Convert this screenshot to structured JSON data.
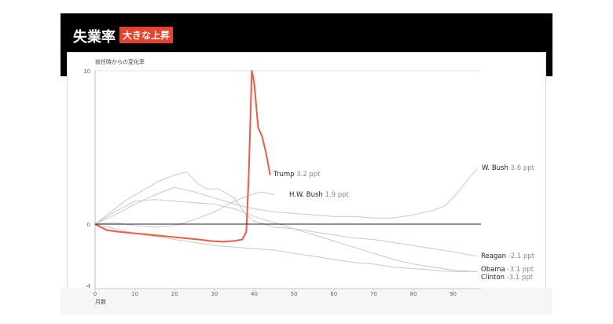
{
  "header": {
    "title": "失業率",
    "badge": "大きな上昇"
  },
  "chart_data": {
    "type": "line",
    "ylabel": "就任時からの変化率",
    "xlabel": "月数",
    "xlim": [
      0,
      97
    ],
    "ylim": [
      -4,
      10
    ],
    "y_ticks": [
      "10",
      "0",
      "-4"
    ],
    "x_ticks": [
      "0",
      "10",
      "20",
      "30",
      "40",
      "50",
      "60",
      "70",
      "80",
      "90"
    ],
    "series": [
      {
        "name": "Trump",
        "value_label": "3.2 ppt",
        "color": "#f15a40",
        "points": [
          [
            0,
            0
          ],
          [
            3,
            -0.4
          ],
          [
            6,
            -0.5
          ],
          [
            10,
            -0.6
          ],
          [
            14,
            -0.7
          ],
          [
            18,
            -0.8
          ],
          [
            22,
            -0.9
          ],
          [
            26,
            -1.0
          ],
          [
            29,
            -1.1
          ],
          [
            32,
            -1.15
          ],
          [
            35,
            -1.1
          ],
          [
            37,
            -1.0
          ],
          [
            38,
            -0.5
          ],
          [
            38.6,
            3.0
          ],
          [
            39,
            6.5
          ],
          [
            39.4,
            10.0
          ],
          [
            40,
            9.2
          ],
          [
            41,
            6.3
          ],
          [
            42,
            5.7
          ],
          [
            43,
            4.6
          ],
          [
            44,
            3.2
          ]
        ]
      },
      {
        "name": "W. Bush",
        "value_label": "3.6 ppt",
        "color": "#c9c9c9",
        "points": [
          [
            0,
            0
          ],
          [
            5,
            0.6
          ],
          [
            10,
            1.3
          ],
          [
            15,
            1.9
          ],
          [
            20,
            2.4
          ],
          [
            25,
            2.1
          ],
          [
            30,
            1.7
          ],
          [
            35,
            1.3
          ],
          [
            40,
            1.0
          ],
          [
            45,
            0.8
          ],
          [
            50,
            0.7
          ],
          [
            55,
            0.6
          ],
          [
            60,
            0.5
          ],
          [
            65,
            0.5
          ],
          [
            70,
            0.4
          ],
          [
            75,
            0.4
          ],
          [
            80,
            0.6
          ],
          [
            85,
            0.9
          ],
          [
            88,
            1.2
          ],
          [
            91,
            2.0
          ],
          [
            94,
            3.0
          ],
          [
            96,
            3.6
          ]
        ]
      },
      {
        "name": "H.W. Bush",
        "value_label": "1.9 ppt",
        "color": "#c9c9c9",
        "points": [
          [
            0,
            0
          ],
          [
            5,
            0.1
          ],
          [
            10,
            -0.1
          ],
          [
            15,
            -0.2
          ],
          [
            20,
            -0.1
          ],
          [
            25,
            0.3
          ],
          [
            30,
            0.8
          ],
          [
            35,
            1.5
          ],
          [
            40,
            2.0
          ],
          [
            42,
            2.1
          ],
          [
            45,
            1.9
          ]
        ]
      },
      {
        "name": "Reagan",
        "value_label": "-2.1 ppt",
        "color": "#c9c9c9",
        "points": [
          [
            0,
            0
          ],
          [
            4,
            0.8
          ],
          [
            8,
            1.6
          ],
          [
            12,
            2.2
          ],
          [
            16,
            2.8
          ],
          [
            20,
            3.2
          ],
          [
            23,
            3.4
          ],
          [
            26,
            2.6
          ],
          [
            28,
            2.3
          ],
          [
            31,
            2.3
          ],
          [
            35,
            1.7
          ],
          [
            38,
            0.6
          ],
          [
            40,
            0.2
          ],
          [
            45,
            -0.2
          ],
          [
            50,
            -0.3
          ],
          [
            55,
            -0.5
          ],
          [
            60,
            -0.7
          ],
          [
            65,
            -0.9
          ],
          [
            70,
            -1.0
          ],
          [
            75,
            -1.2
          ],
          [
            80,
            -1.4
          ],
          [
            85,
            -1.6
          ],
          [
            90,
            -1.8
          ],
          [
            96,
            -2.1
          ]
        ]
      },
      {
        "name": "Obama",
        "value_label": "-3.1 ppt",
        "color": "#c9c9c9",
        "points": [
          [
            0,
            0
          ],
          [
            5,
            0.8
          ],
          [
            10,
            1.5
          ],
          [
            15,
            1.6
          ],
          [
            20,
            1.5
          ],
          [
            25,
            1.4
          ],
          [
            30,
            1.3
          ],
          [
            35,
            1.0
          ],
          [
            40,
            0.5
          ],
          [
            45,
            0.1
          ],
          [
            50,
            -0.3
          ],
          [
            55,
            -0.7
          ],
          [
            60,
            -1.1
          ],
          [
            65,
            -1.5
          ],
          [
            70,
            -1.9
          ],
          [
            75,
            -2.3
          ],
          [
            80,
            -2.6
          ],
          [
            85,
            -2.8
          ],
          [
            90,
            -3.0
          ],
          [
            96,
            -3.1
          ]
        ]
      },
      {
        "name": "Clinton",
        "value_label": "-3.1 ppt",
        "color": "#c9c9c9",
        "points": [
          [
            0,
            0
          ],
          [
            5,
            -0.3
          ],
          [
            10,
            -0.6
          ],
          [
            15,
            -0.8
          ],
          [
            20,
            -1.0
          ],
          [
            25,
            -1.2
          ],
          [
            30,
            -1.4
          ],
          [
            35,
            -1.5
          ],
          [
            40,
            -1.6
          ],
          [
            45,
            -1.7
          ],
          [
            50,
            -1.9
          ],
          [
            55,
            -2.1
          ],
          [
            60,
            -2.3
          ],
          [
            65,
            -2.5
          ],
          [
            70,
            -2.6
          ],
          [
            75,
            -2.8
          ],
          [
            80,
            -2.9
          ],
          [
            85,
            -3.0
          ],
          [
            90,
            -3.1
          ],
          [
            96,
            -3.1
          ]
        ]
      }
    ]
  }
}
